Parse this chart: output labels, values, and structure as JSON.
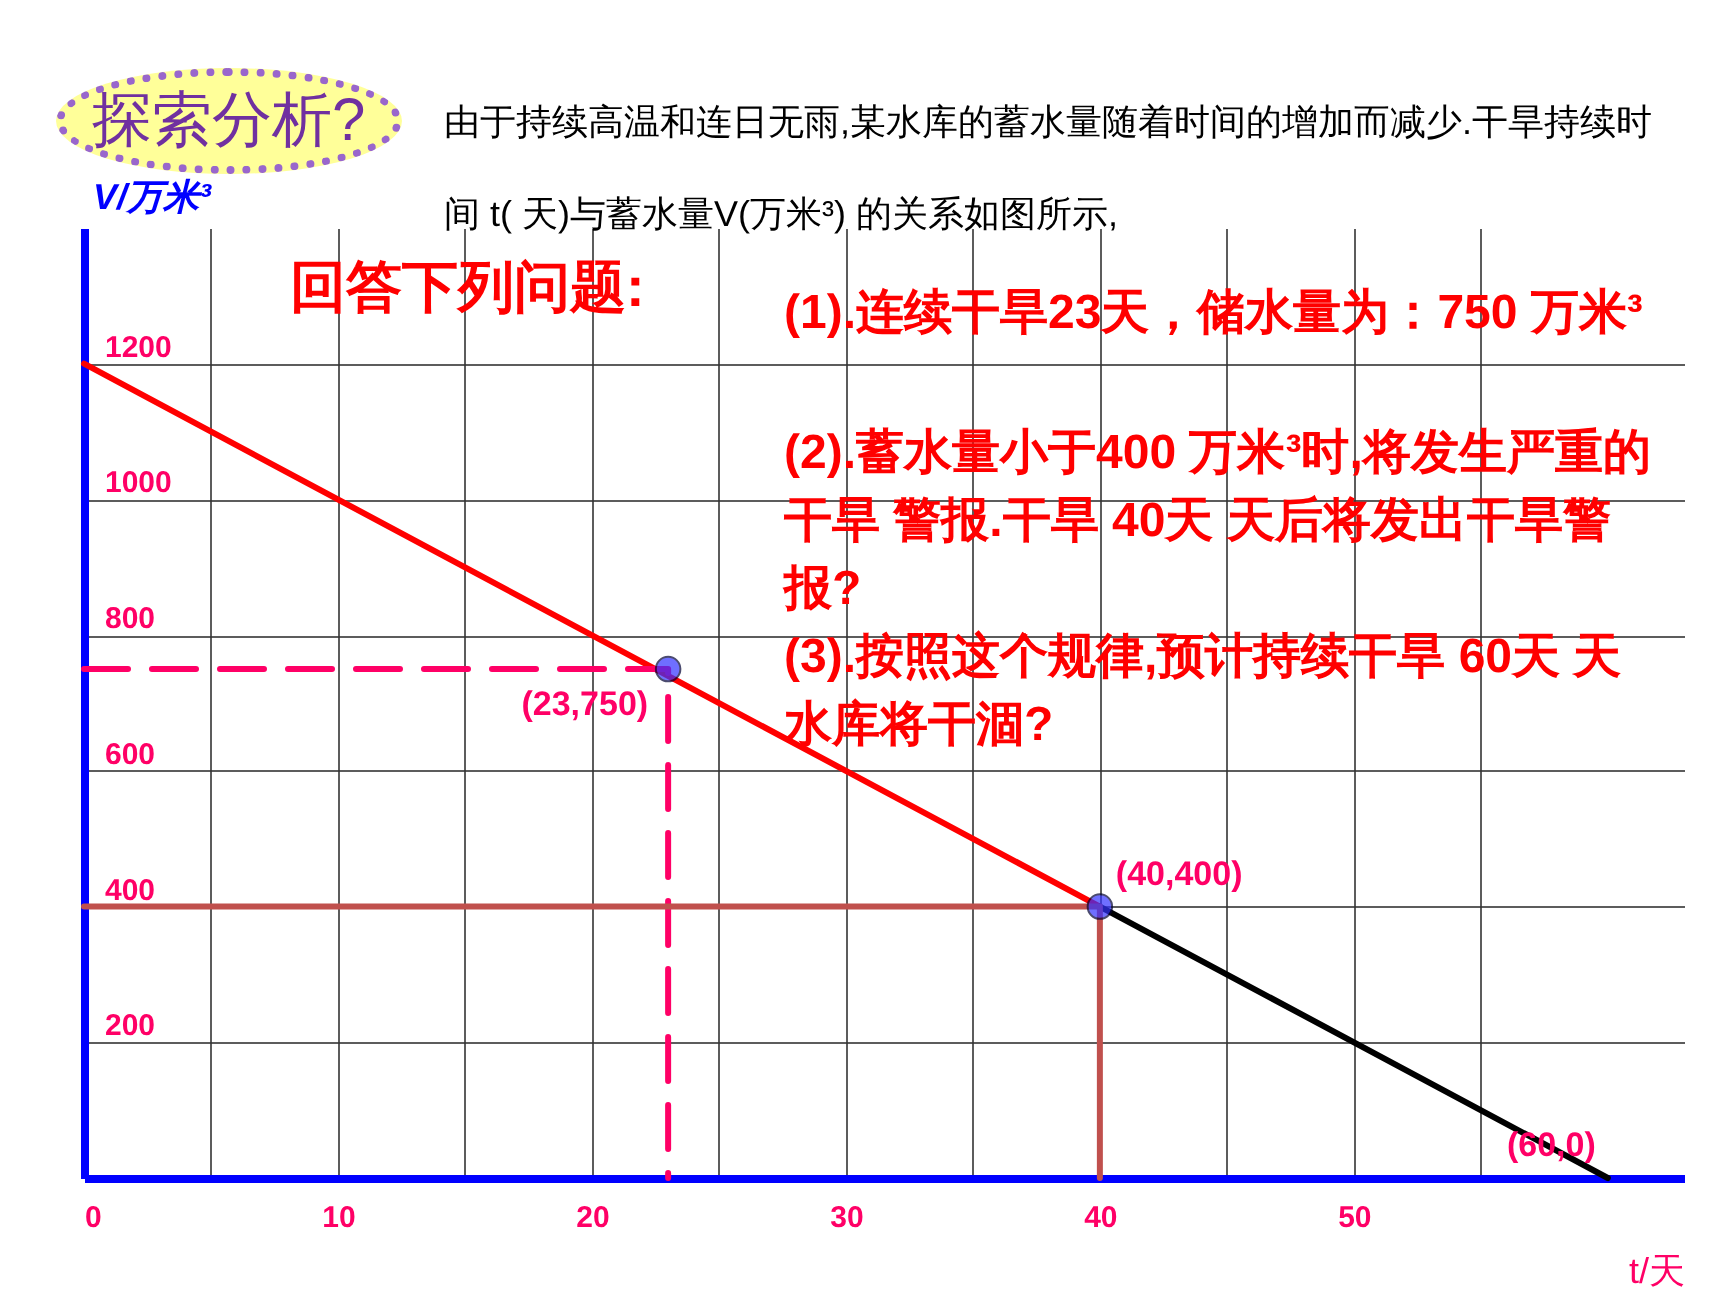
{
  "chart_data": {
    "type": "line",
    "title": "由于持续高温和连日无雨,某水库的蓄水量随着时间的增加而减少.干旱持续时间 t( 天)与蓄水量V(万米³) 的关系如图所示,",
    "xlabel": "t/天",
    "ylabel": "V/万米³",
    "series": [
      {
        "x": [
          0,
          40
        ],
        "values": [
          1200,
          400
        ],
        "color": "#ff0000",
        "line_style": "solid"
      },
      {
        "x": [
          40,
          60
        ],
        "values": [
          400,
          0
        ],
        "color": "#000000",
        "line_style": "solid"
      },
      {
        "x": [
          0,
          23,
          23
        ],
        "values": [
          750,
          750,
          0
        ],
        "color": "#ff0066",
        "line_style": "dashed"
      },
      {
        "x": [
          0,
          40,
          40
        ],
        "values": [
          400,
          400,
          0
        ],
        "color": "#c0504d",
        "line_style": "solid"
      },
      {
        "type": "scatter",
        "x": [
          23,
          40
        ],
        "values": [
          750,
          400
        ],
        "color": "#3333ff",
        "marker": "circle"
      }
    ],
    "xlim": [
      0,
      63
    ],
    "ylim": [
      0,
      1400
    ],
    "xticks": [
      0,
      {
        "value": 5,
        "label": null
      },
      10,
      {
        "value": 15,
        "label": null
      },
      20,
      {
        "value": 25,
        "label": null
      },
      30,
      {
        "value": 35,
        "label": null
      },
      40,
      {
        "value": 45,
        "label": null
      },
      50,
      {
        "value": 55,
        "label": null
      }
    ],
    "yticks": [
      200,
      400,
      600,
      800,
      1000,
      1200
    ],
    "grid": true,
    "annotations": [
      "探索分析?",
      "回答下列问题:",
      "(1).连续干旱23天，储水量为：750 万米³",
      "(2).蓄水量小于400 万米³时,将发生严重的干旱 警报.干旱 40天 天后将发出干旱警报?",
      "(3).按照这个规律,预计持续干旱 60天 天水库将干涸?",
      {
        "text": "(23,750)",
        "x": 23,
        "y": 750
      },
      {
        "text": "(40,400)",
        "x": 40,
        "y": 400
      },
      {
        "text": "(60,0)",
        "x": 60,
        "y": 0
      }
    ]
  }
}
